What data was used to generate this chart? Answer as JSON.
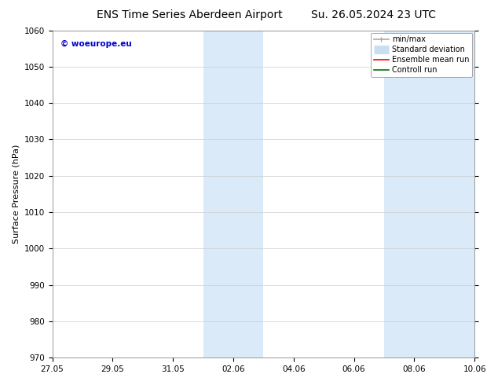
{
  "title_left": "ENS Time Series Aberdeen Airport",
  "title_right": "Su. 26.05.2024 23 UTC",
  "ylabel": "Surface Pressure (hPa)",
  "ylim": [
    970,
    1060
  ],
  "yticks": [
    970,
    980,
    990,
    1000,
    1010,
    1020,
    1030,
    1040,
    1050,
    1060
  ],
  "xtick_labels": [
    "27.05",
    "29.05",
    "31.05",
    "02.06",
    "04.06",
    "06.06",
    "08.06",
    "10.06"
  ],
  "xtick_positions_days": [
    0,
    2,
    4,
    6,
    8,
    10,
    12,
    14
  ],
  "xlim": [
    0,
    14
  ],
  "shaded_bands": [
    {
      "start_day": 5.0,
      "end_day": 7.0
    },
    {
      "start_day": 11.0,
      "end_day": 14.0
    }
  ],
  "watermark": "© woeurope.eu",
  "watermark_color": "#0000cc",
  "legend_entries": [
    {
      "label": "min/max",
      "color": "#aaaaaa",
      "lw": 1.2,
      "style": "line_with_caps"
    },
    {
      "label": "Standard deviation",
      "color": "#c8dff0",
      "lw": 8,
      "style": "thick_line"
    },
    {
      "label": "Ensemble mean run",
      "color": "#ff0000",
      "lw": 1.2,
      "style": "line"
    },
    {
      "label": "Controll run",
      "color": "#007700",
      "lw": 1.2,
      "style": "line"
    }
  ],
  "background_color": "#ffffff",
  "plot_bg_color": "#ffffff",
  "shaded_color": "#daeaf8",
  "grid_color": "#cccccc",
  "title_fontsize": 10,
  "tick_fontsize": 7.5,
  "label_fontsize": 8,
  "legend_fontsize": 7
}
